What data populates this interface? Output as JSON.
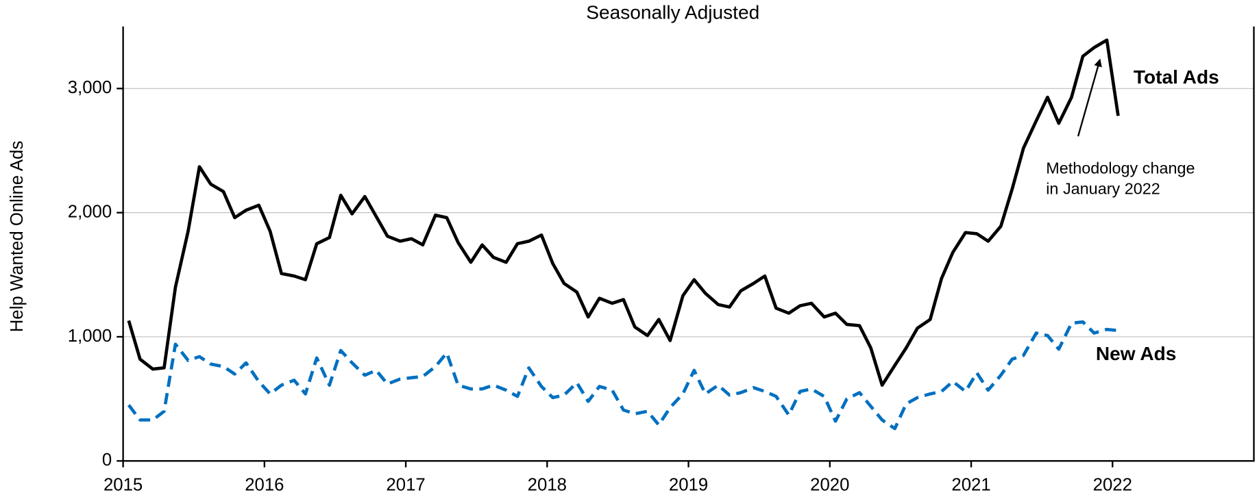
{
  "chart_data": {
    "type": "line",
    "title": "Seasonally Adjusted",
    "y_label": "Help Wanted Online Ads",
    "annotations": {
      "total": "Total Ads",
      "new": "New Ads",
      "note": [
        "Methodology change",
        "in January 2022"
      ]
    },
    "xlim": [
      2015,
      2023
    ],
    "xticks": [
      2015,
      2016,
      2017,
      2018,
      2019,
      2020,
      2021,
      2022
    ],
    "ylim": [
      0,
      3500
    ],
    "yticks": [
      0,
      {
        "value": 1000,
        "label": "1,000"
      },
      {
        "value": 2000,
        "label": "2,000"
      },
      {
        "value": 3000,
        "label": "3,000"
      }
    ],
    "grid": true,
    "x": [
      2015.04,
      2015.12,
      2015.21,
      2015.29,
      2015.37,
      2015.46,
      2015.54,
      2015.62,
      2015.71,
      2015.79,
      2015.87,
      2015.96,
      2016.04,
      2016.12,
      2016.21,
      2016.29,
      2016.37,
      2016.46,
      2016.54,
      2016.62,
      2016.71,
      2016.79,
      2016.87,
      2016.96,
      2017.04,
      2017.12,
      2017.21,
      2017.29,
      2017.37,
      2017.46,
      2017.54,
      2017.62,
      2017.71,
      2017.79,
      2017.87,
      2017.96,
      2018.04,
      2018.12,
      2018.21,
      2018.29,
      2018.37,
      2018.46,
      2018.54,
      2018.62,
      2018.71,
      2018.79,
      2018.87,
      2018.96,
      2019.04,
      2019.12,
      2019.21,
      2019.29,
      2019.37,
      2019.46,
      2019.54,
      2019.62,
      2019.71,
      2019.79,
      2019.87,
      2019.96,
      2020.04,
      2020.12,
      2020.21,
      2020.29,
      2020.37,
      2020.46,
      2020.54,
      2020.62,
      2020.71,
      2020.79,
      2020.87,
      2020.96,
      2021.04,
      2021.12,
      2021.21,
      2021.29,
      2021.37,
      2021.46,
      2021.54,
      2021.62,
      2021.71,
      2021.79,
      2021.87,
      2021.96,
      2022.04
    ],
    "series": [
      {
        "name": "Total Ads",
        "color": "#000000",
        "dash": false,
        "values": [
          1130,
          820,
          740,
          750,
          1400,
          1850,
          2370,
          2230,
          2170,
          1960,
          2020,
          2060,
          1850,
          1510,
          1490,
          1460,
          1750,
          1800,
          2140,
          1990,
          2130,
          1970,
          1810,
          1770,
          1790,
          1740,
          1980,
          1960,
          1760,
          1600,
          1740,
          1640,
          1600,
          1750,
          1770,
          1820,
          1590,
          1430,
          1360,
          1160,
          1310,
          1270,
          1300,
          1080,
          1010,
          1140,
          970,
          1330,
          1460,
          1350,
          1260,
          1240,
          1370,
          1430,
          1490,
          1230,
          1190,
          1250,
          1270,
          1160,
          1190,
          1100,
          1090,
          910,
          610,
          770,
          910,
          1070,
          1140,
          1470,
          1680,
          1840,
          1830,
          1770,
          1890,
          2190,
          2520,
          2740,
          2930,
          2720,
          2930,
          3260,
          3330,
          3390,
          2780
        ]
      },
      {
        "name": "New Ads",
        "color": "#0070c0",
        "dash": true,
        "values": [
          450,
          330,
          330,
          400,
          940,
          810,
          840,
          780,
          760,
          700,
          790,
          640,
          540,
          610,
          650,
          540,
          830,
          610,
          890,
          790,
          690,
          730,
          620,
          660,
          670,
          680,
          760,
          870,
          610,
          580,
          580,
          610,
          570,
          520,
          750,
          600,
          510,
          530,
          630,
          480,
          600,
          570,
          410,
          380,
          400,
          290,
          430,
          540,
          730,
          540,
          610,
          530,
          550,
          590,
          560,
          520,
          370,
          560,
          580,
          520,
          320,
          500,
          550,
          440,
          330,
          260,
          460,
          510,
          540,
          560,
          640,
          560,
          710,
          570,
          690,
          820,
          850,
          1030,
          1010,
          900,
          1110,
          1120,
          1030,
          1060,
          1050
        ]
      }
    ]
  }
}
